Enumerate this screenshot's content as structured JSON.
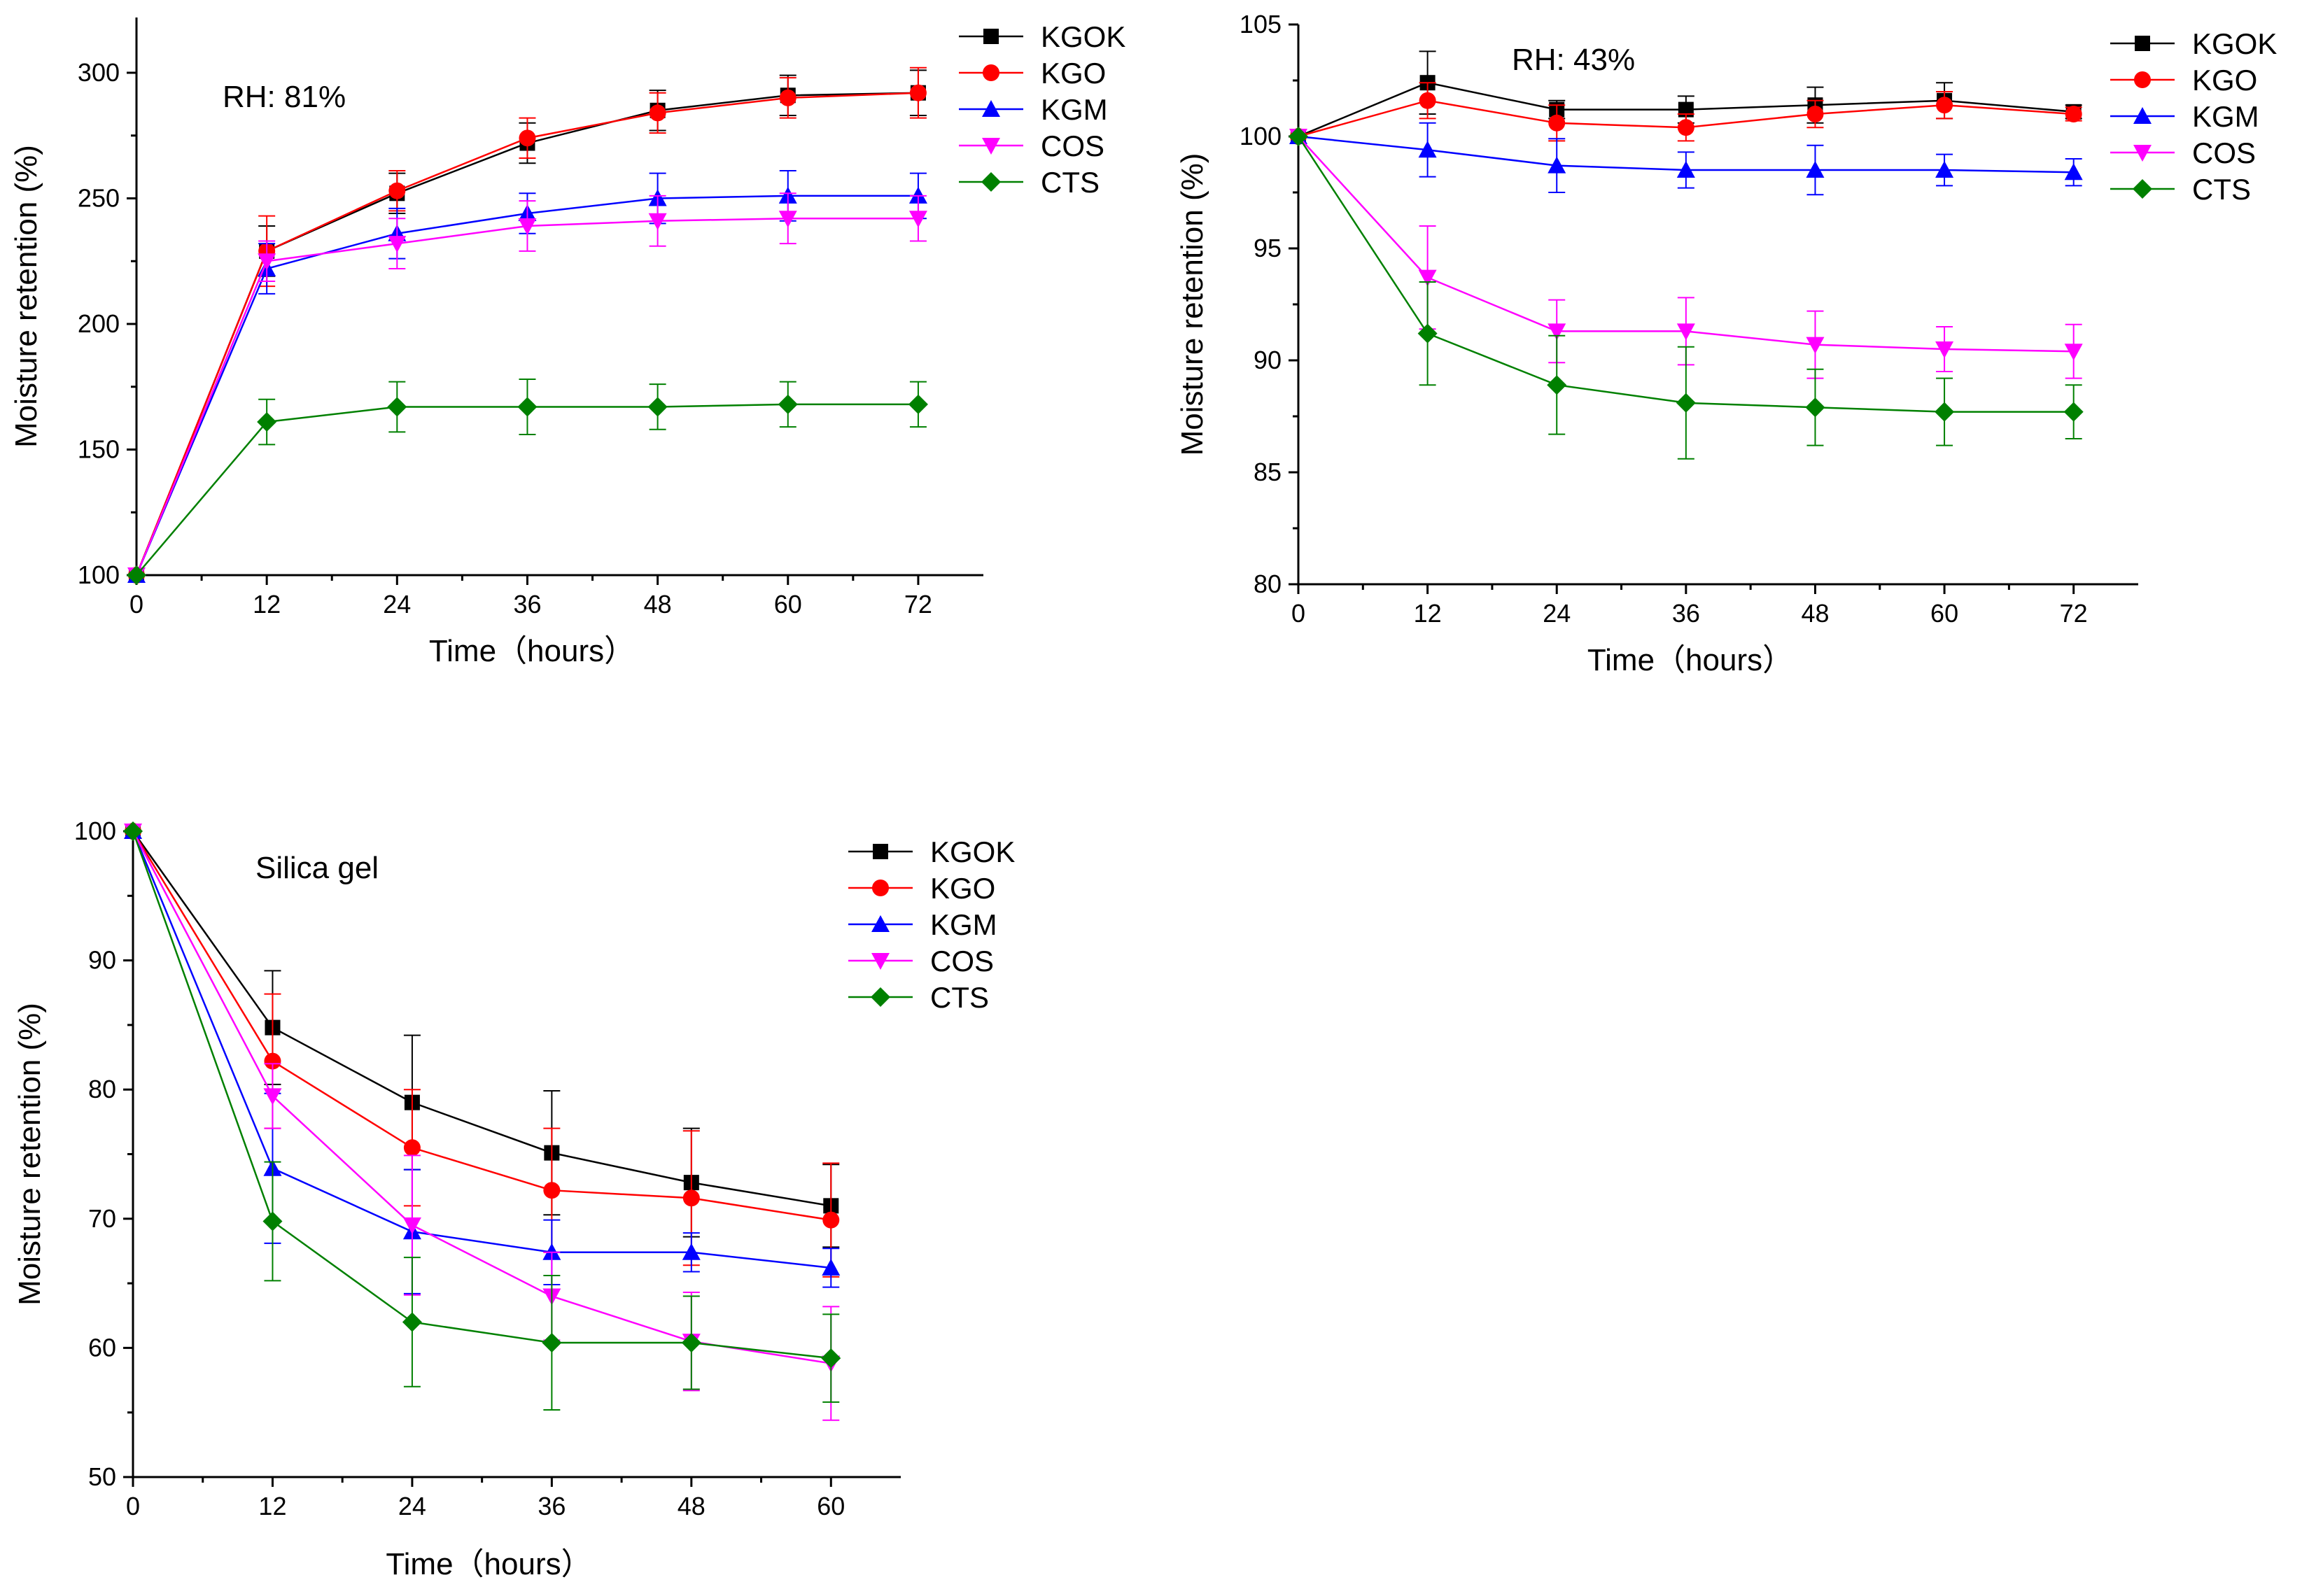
{
  "chart_data": [
    {
      "type": "line",
      "title": "",
      "annotation": "RH: 81%",
      "xlabel": "Time（hours）",
      "ylabel": "Moisture retention (%)",
      "xlim": [
        0,
        78
      ],
      "ylim": [
        100,
        322
      ],
      "xticks": [
        0,
        12,
        24,
        36,
        48,
        60,
        72
      ],
      "yticks": [
        100,
        150,
        200,
        250,
        300
      ],
      "legend_position": "top-right",
      "x": [
        0,
        12,
        24,
        36,
        48,
        60,
        72
      ],
      "series": [
        {
          "name": "KGOK",
          "color": "#000000",
          "marker": "square",
          "values": [
            100,
            229,
            252,
            272,
            285,
            291,
            292
          ],
          "errors": [
            0,
            10,
            8,
            8,
            8,
            8,
            9
          ]
        },
        {
          "name": "KGO",
          "color": "#ff0000",
          "marker": "circle",
          "values": [
            100,
            229,
            253,
            274,
            284,
            290,
            292
          ],
          "errors": [
            0,
            14,
            8,
            8,
            8,
            8,
            10
          ]
        },
        {
          "name": "KGM",
          "color": "#0000ff",
          "marker": "triangle-up",
          "values": [
            100,
            222,
            236,
            244,
            250,
            251,
            251
          ],
          "errors": [
            0,
            10,
            10,
            8,
            10,
            10,
            9
          ]
        },
        {
          "name": "COS",
          "color": "#ff00ff",
          "marker": "triangle-down",
          "values": [
            100,
            225,
            232,
            239,
            241,
            242,
            242
          ],
          "errors": [
            0,
            8,
            10,
            10,
            10,
            10,
            9
          ]
        },
        {
          "name": "CTS",
          "color": "#008000",
          "marker": "diamond",
          "values": [
            100,
            161,
            167,
            167,
            167,
            168,
            168
          ],
          "errors": [
            0,
            9,
            10,
            11,
            9,
            9,
            9
          ]
        }
      ]
    },
    {
      "type": "line",
      "title": "",
      "annotation": "RH: 43%",
      "xlabel": "Time（hours）",
      "ylabel": "Moisture retention (%)",
      "xlim": [
        0,
        78
      ],
      "ylim": [
        80,
        105
      ],
      "xticks": [
        0,
        12,
        24,
        36,
        48,
        60,
        72
      ],
      "yticks": [
        80,
        85,
        90,
        95,
        100,
        105
      ],
      "legend_position": "top-right",
      "x": [
        0,
        12,
        24,
        36,
        48,
        60,
        72
      ],
      "series": [
        {
          "name": "KGOK",
          "color": "#000000",
          "marker": "square",
          "values": [
            100,
            102.4,
            101.2,
            101.2,
            101.4,
            101.6,
            101.1
          ],
          "errors": [
            0,
            1.4,
            0.4,
            0.6,
            0.8,
            0.8,
            0.3
          ]
        },
        {
          "name": "KGO",
          "color": "#ff0000",
          "marker": "circle",
          "values": [
            100,
            101.6,
            100.6,
            100.4,
            101.0,
            101.4,
            101.0
          ],
          "errors": [
            0,
            0.8,
            0.8,
            0.6,
            0.6,
            0.6,
            0.3
          ]
        },
        {
          "name": "KGM",
          "color": "#0000ff",
          "marker": "triangle-up",
          "values": [
            100,
            99.4,
            98.7,
            98.5,
            98.5,
            98.5,
            98.4
          ],
          "errors": [
            0,
            1.2,
            1.2,
            0.8,
            1.1,
            0.7,
            0.6
          ]
        },
        {
          "name": "COS",
          "color": "#ff00ff",
          "marker": "triangle-down",
          "values": [
            100,
            93.7,
            91.3,
            91.3,
            90.7,
            90.5,
            90.4
          ],
          "errors": [
            0,
            2.3,
            1.4,
            1.5,
            1.5,
            1.0,
            1.2
          ]
        },
        {
          "name": "CTS",
          "color": "#008000",
          "marker": "diamond",
          "values": [
            100,
            91.2,
            88.9,
            88.1,
            87.9,
            87.7,
            87.7
          ],
          "errors": [
            0,
            2.3,
            2.2,
            2.5,
            1.7,
            1.5,
            1.2
          ]
        }
      ]
    },
    {
      "type": "line",
      "title": "",
      "annotation": "Silica gel",
      "xlabel": "Time（hours）",
      "ylabel": "Moisture retention (%)",
      "xlim": [
        0,
        66
      ],
      "ylim": [
        50,
        100
      ],
      "xticks": [
        0,
        12,
        24,
        36,
        48,
        60
      ],
      "yticks": [
        50,
        60,
        70,
        80,
        90,
        100
      ],
      "legend_position": "top-right",
      "x": [
        0,
        12,
        24,
        36,
        48,
        60
      ],
      "series": [
        {
          "name": "KGOK",
          "color": "#000000",
          "marker": "square",
          "values": [
            100,
            84.8,
            79.0,
            75.1,
            72.8,
            71.0
          ],
          "errors": [
            0,
            4.4,
            5.2,
            4.8,
            4.2,
            3.2
          ]
        },
        {
          "name": "KGO",
          "color": "#ff0000",
          "marker": "circle",
          "values": [
            100,
            82.2,
            75.5,
            72.2,
            71.6,
            69.9
          ],
          "errors": [
            0,
            5.2,
            4.5,
            4.8,
            5.2,
            4.4
          ]
        },
        {
          "name": "KGM",
          "color": "#0000ff",
          "marker": "triangle-up",
          "values": [
            100,
            73.9,
            69.0,
            67.4,
            67.4,
            66.2
          ],
          "errors": [
            0,
            5.8,
            4.8,
            2.5,
            1.5,
            1.5
          ]
        },
        {
          "name": "COS",
          "color": "#ff00ff",
          "marker": "triangle-down",
          "values": [
            100,
            79.5,
            69.5,
            64.0,
            60.5,
            58.8
          ],
          "errors": [
            0,
            2.5,
            5.4,
            3.4,
            3.8,
            4.4
          ]
        },
        {
          "name": "CTS",
          "color": "#008000",
          "marker": "diamond",
          "values": [
            100,
            69.8,
            62.0,
            60.4,
            60.4,
            59.2
          ],
          "errors": [
            0,
            4.6,
            5.0,
            5.2,
            3.6,
            3.4
          ]
        }
      ]
    }
  ]
}
